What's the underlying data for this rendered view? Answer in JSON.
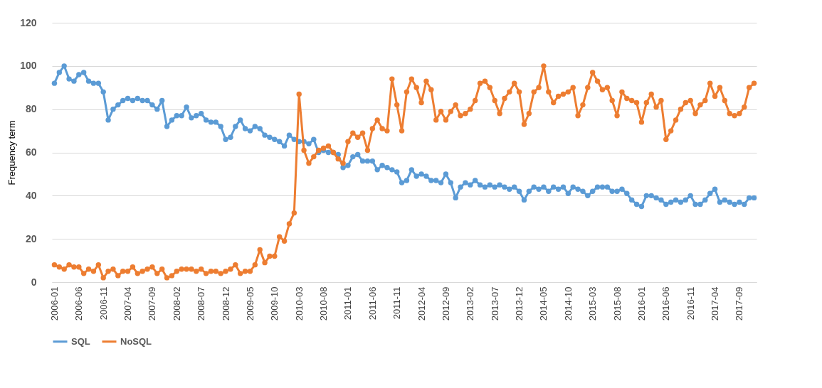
{
  "chart_data": {
    "type": "line",
    "ylabel": "Frequency term",
    "ylim": [
      0,
      120
    ],
    "yticks": [
      0,
      20,
      40,
      60,
      80,
      100,
      120
    ],
    "grid": "y",
    "legend": "bottom",
    "marker": "circle",
    "categories": [
      "2006-01",
      null,
      null,
      null,
      null,
      "2006-06",
      null,
      null,
      null,
      null,
      "2006-11",
      null,
      null,
      null,
      null,
      "2007-04",
      null,
      null,
      null,
      null,
      "2007-09",
      null,
      null,
      null,
      null,
      "2008-02",
      null,
      null,
      null,
      null,
      "2008-07",
      null,
      null,
      null,
      null,
      "2008-12",
      null,
      null,
      null,
      null,
      "2009-05",
      null,
      null,
      null,
      null,
      "2009-10",
      null,
      null,
      null,
      null,
      "2010-03",
      null,
      null,
      null,
      null,
      "2010-08",
      null,
      null,
      null,
      null,
      "2011-01",
      null,
      null,
      null,
      null,
      "2011-06",
      null,
      null,
      null,
      null,
      "2011-11",
      null,
      null,
      null,
      null,
      "2012-04",
      null,
      null,
      null,
      null,
      "2012-09",
      null,
      null,
      null,
      null,
      "2013-02",
      null,
      null,
      null,
      null,
      "2013-07",
      null,
      null,
      null,
      null,
      "2013-12",
      null,
      null,
      null,
      null,
      "2014-05",
      null,
      null,
      null,
      null,
      "2014-10",
      null,
      null,
      null,
      null,
      "2015-03",
      null,
      null,
      null,
      null,
      "2015-08",
      null,
      null,
      null,
      null,
      "2016-01",
      null,
      null,
      null,
      null,
      "2016-06",
      null,
      null,
      null,
      null,
      "2016-11",
      null,
      null,
      null,
      null,
      "2017-04",
      null,
      null,
      null,
      null,
      "2017-09",
      null,
      null,
      null
    ],
    "series": [
      {
        "name": "SQL",
        "color": "#5b9bd5",
        "values": [
          92,
          97,
          100,
          94,
          93,
          96,
          97,
          93,
          92,
          92,
          88,
          75,
          80,
          82,
          84,
          85,
          84,
          85,
          84,
          84,
          82,
          80,
          84,
          72,
          75,
          77,
          77,
          81,
          76,
          77,
          78,
          75,
          74,
          74,
          72,
          66,
          67,
          72,
          75,
          71,
          70,
          72,
          71,
          68,
          67,
          66,
          65,
          63,
          68,
          66,
          65,
          65,
          64,
          66,
          60,
          61,
          60,
          60,
          59,
          53,
          54,
          58,
          59,
          56,
          56,
          56,
          52,
          54,
          53,
          52,
          51,
          46,
          47,
          52,
          49,
          50,
          49,
          47,
          47,
          46,
          50,
          46,
          39,
          44,
          46,
          45,
          47,
          45,
          44,
          45,
          44,
          45,
          44,
          43,
          44,
          42,
          38,
          42,
          44,
          43,
          44,
          42,
          44,
          43,
          44,
          41,
          44,
          43,
          42,
          40,
          42,
          44,
          44,
          44,
          42,
          42,
          43,
          41,
          38,
          36,
          35,
          40,
          40,
          39,
          38,
          36,
          37,
          38,
          37,
          38,
          40,
          36,
          36,
          38,
          41,
          43,
          37,
          38,
          37,
          36,
          37,
          36,
          39,
          39
        ]
      },
      {
        "name": "NoSQL",
        "color": "#ed7d31",
        "values": [
          8,
          7,
          6,
          8,
          7,
          7,
          4,
          6,
          5,
          8,
          2,
          5,
          6,
          3,
          5,
          5,
          7,
          4,
          5,
          6,
          7,
          4,
          6,
          2,
          3,
          5,
          6,
          6,
          6,
          5,
          6,
          4,
          5,
          5,
          4,
          5,
          6,
          8,
          4,
          5,
          5,
          8,
          15,
          9,
          12,
          12,
          21,
          19,
          27,
          32,
          87,
          61,
          55,
          58,
          61,
          62,
          63,
          60,
          57,
          55,
          65,
          69,
          67,
          69,
          61,
          71,
          75,
          71,
          70,
          94,
          82,
          70,
          88,
          94,
          90,
          83,
          93,
          89,
          75,
          79,
          75,
          79,
          82,
          77,
          78,
          80,
          84,
          92,
          93,
          90,
          84,
          78,
          85,
          88,
          92,
          88,
          73,
          78,
          88,
          90,
          100,
          88,
          83,
          86,
          87,
          88,
          90,
          77,
          82,
          90,
          97,
          93,
          89,
          90,
          84,
          77,
          88,
          85,
          84,
          83,
          74,
          83,
          87,
          81,
          84,
          66,
          70,
          75,
          80,
          83,
          84,
          78,
          82,
          84,
          92,
          86,
          90,
          84,
          78,
          77,
          78,
          81,
          90,
          92
        ]
      }
    ]
  }
}
